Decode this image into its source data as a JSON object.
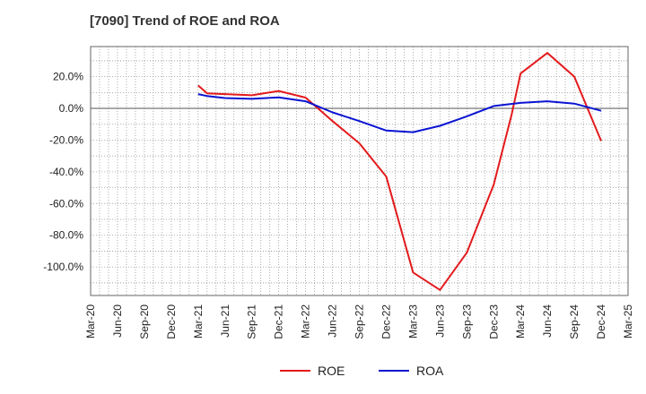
{
  "chart_data": {
    "type": "line",
    "title": "[7090]  Trend of ROE and ROA",
    "xlabel": "",
    "ylabel": "",
    "x": [
      "Mar-20",
      "Jun-20",
      "Sep-20",
      "Dec-20",
      "Mar-21",
      "Jun-21",
      "Sep-21",
      "Dec-21",
      "Mar-22",
      "Jun-22",
      "Sep-22",
      "Dec-22",
      "Mar-23",
      "Jun-23",
      "Sep-23",
      "Dec-23",
      "Mar-24",
      "Jun-24",
      "Sep-24",
      "Dec-24",
      "Mar-25"
    ],
    "y_ticks": [
      20,
      0,
      -20,
      -40,
      -60,
      -80,
      -100
    ],
    "y_tick_labels": [
      "20.0%",
      "0.0%",
      "-20.0%",
      "-40.0%",
      "-60.0%",
      "-80.0%",
      "-100.0%"
    ],
    "ylim": [
      -118,
      39
    ],
    "grid": true,
    "legend_position": "bottom-center",
    "series": [
      {
        "name": "ROE",
        "color": "#e31a1c",
        "points": [
          [
            "Mar-21",
            14.5
          ],
          [
            "Apr-21",
            9.5
          ],
          [
            "Jun-21",
            9.0
          ],
          [
            "Sep-21",
            8.3
          ],
          [
            "Dec-21",
            11.0
          ],
          [
            "Mar-22",
            6.8
          ],
          [
            "Jun-22",
            -8.0
          ],
          [
            "Sep-22",
            -22.0
          ],
          [
            "Dec-22",
            -43.0
          ],
          [
            "Mar-23",
            -103.5
          ],
          [
            "Jun-23",
            -114.5
          ],
          [
            "Sep-23",
            -91.0
          ],
          [
            "Dec-23",
            -48.0
          ],
          [
            "Feb-24",
            -4.0
          ],
          [
            "Mar-24",
            22.0
          ],
          [
            "Jun-24",
            35.0
          ],
          [
            "Sep-24",
            20.0
          ],
          [
            "Dec-24",
            -20.5
          ]
        ]
      },
      {
        "name": "ROA",
        "color": "#0a14d2",
        "points": [
          [
            "Mar-21",
            9.0
          ],
          [
            "Apr-21",
            7.8
          ],
          [
            "Jun-21",
            6.5
          ],
          [
            "Sep-21",
            6.0
          ],
          [
            "Dec-21",
            7.0
          ],
          [
            "Mar-22",
            4.5
          ],
          [
            "Jun-22",
            -2.5
          ],
          [
            "Sep-22",
            -8.0
          ],
          [
            "Dec-22",
            -14.0
          ],
          [
            "Mar-23",
            -15.0
          ],
          [
            "Jun-23",
            -11.0
          ],
          [
            "Sep-23",
            -5.0
          ],
          [
            "Dec-23",
            1.5
          ],
          [
            "Mar-24",
            3.5
          ],
          [
            "Jun-24",
            4.5
          ],
          [
            "Sep-24",
            3.0
          ],
          [
            "Dec-24",
            -1.5
          ]
        ]
      }
    ]
  }
}
